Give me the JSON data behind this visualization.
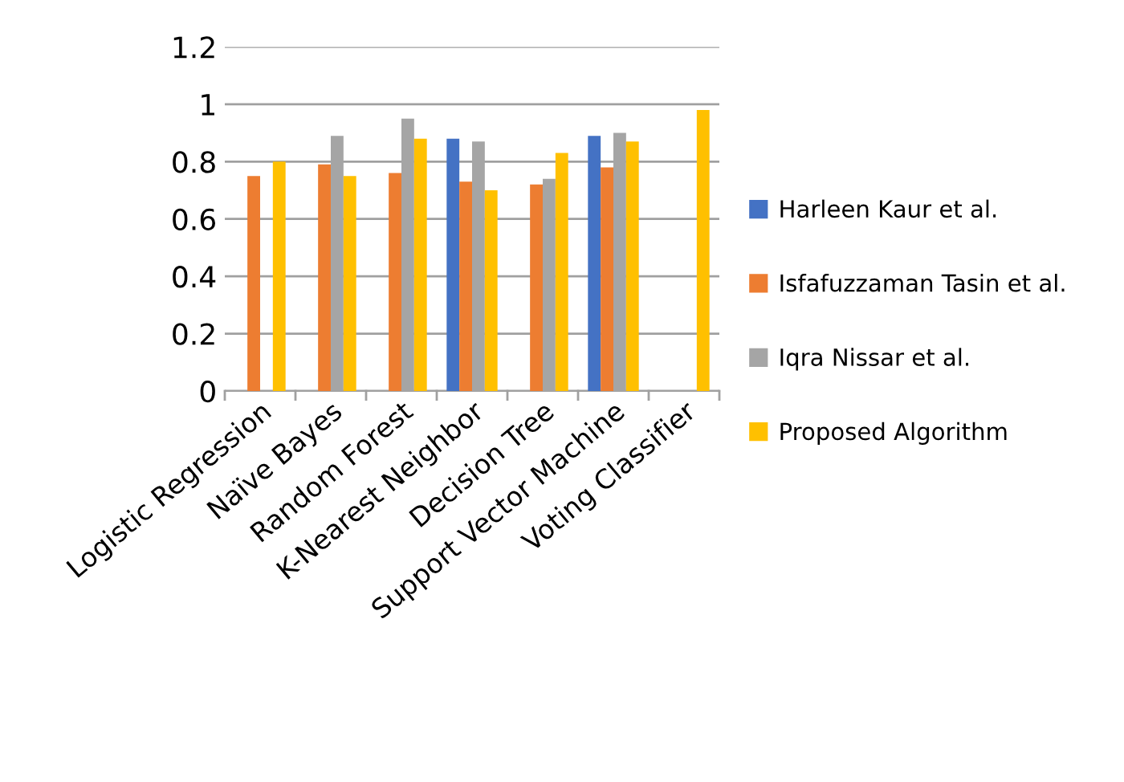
{
  "chart_data": {
    "type": "bar",
    "categories": [
      "Logistic Regression",
      "Naïve Bayes",
      "Random Forest",
      "K-Nearest Neighbor",
      "Decision Tree",
      "Support Vector Machine",
      "Voting Classifier"
    ],
    "series": [
      {
        "name": "Harleen Kaur et al.",
        "color": "#4472c4",
        "values": [
          null,
          null,
          null,
          0.88,
          null,
          0.89,
          null
        ]
      },
      {
        "name": "Isfafuzzaman Tasin et al.",
        "color": "#ed7d31",
        "values": [
          0.75,
          0.79,
          0.76,
          0.73,
          0.72,
          0.78,
          null
        ]
      },
      {
        "name": "Iqra Nissar et al.",
        "color": "#a5a5a5",
        "values": [
          null,
          0.89,
          0.95,
          0.87,
          0.74,
          0.9,
          null
        ]
      },
      {
        "name": "Proposed Algorithm",
        "color": "#ffc000",
        "values": [
          0.8,
          0.75,
          0.88,
          0.7,
          0.83,
          0.87,
          0.98
        ]
      }
    ],
    "ylim": [
      0,
      1.2
    ],
    "yticks": [
      0,
      0.2,
      0.4,
      0.6,
      0.8,
      1,
      1.2
    ],
    "grid": "y",
    "legend": "right"
  }
}
